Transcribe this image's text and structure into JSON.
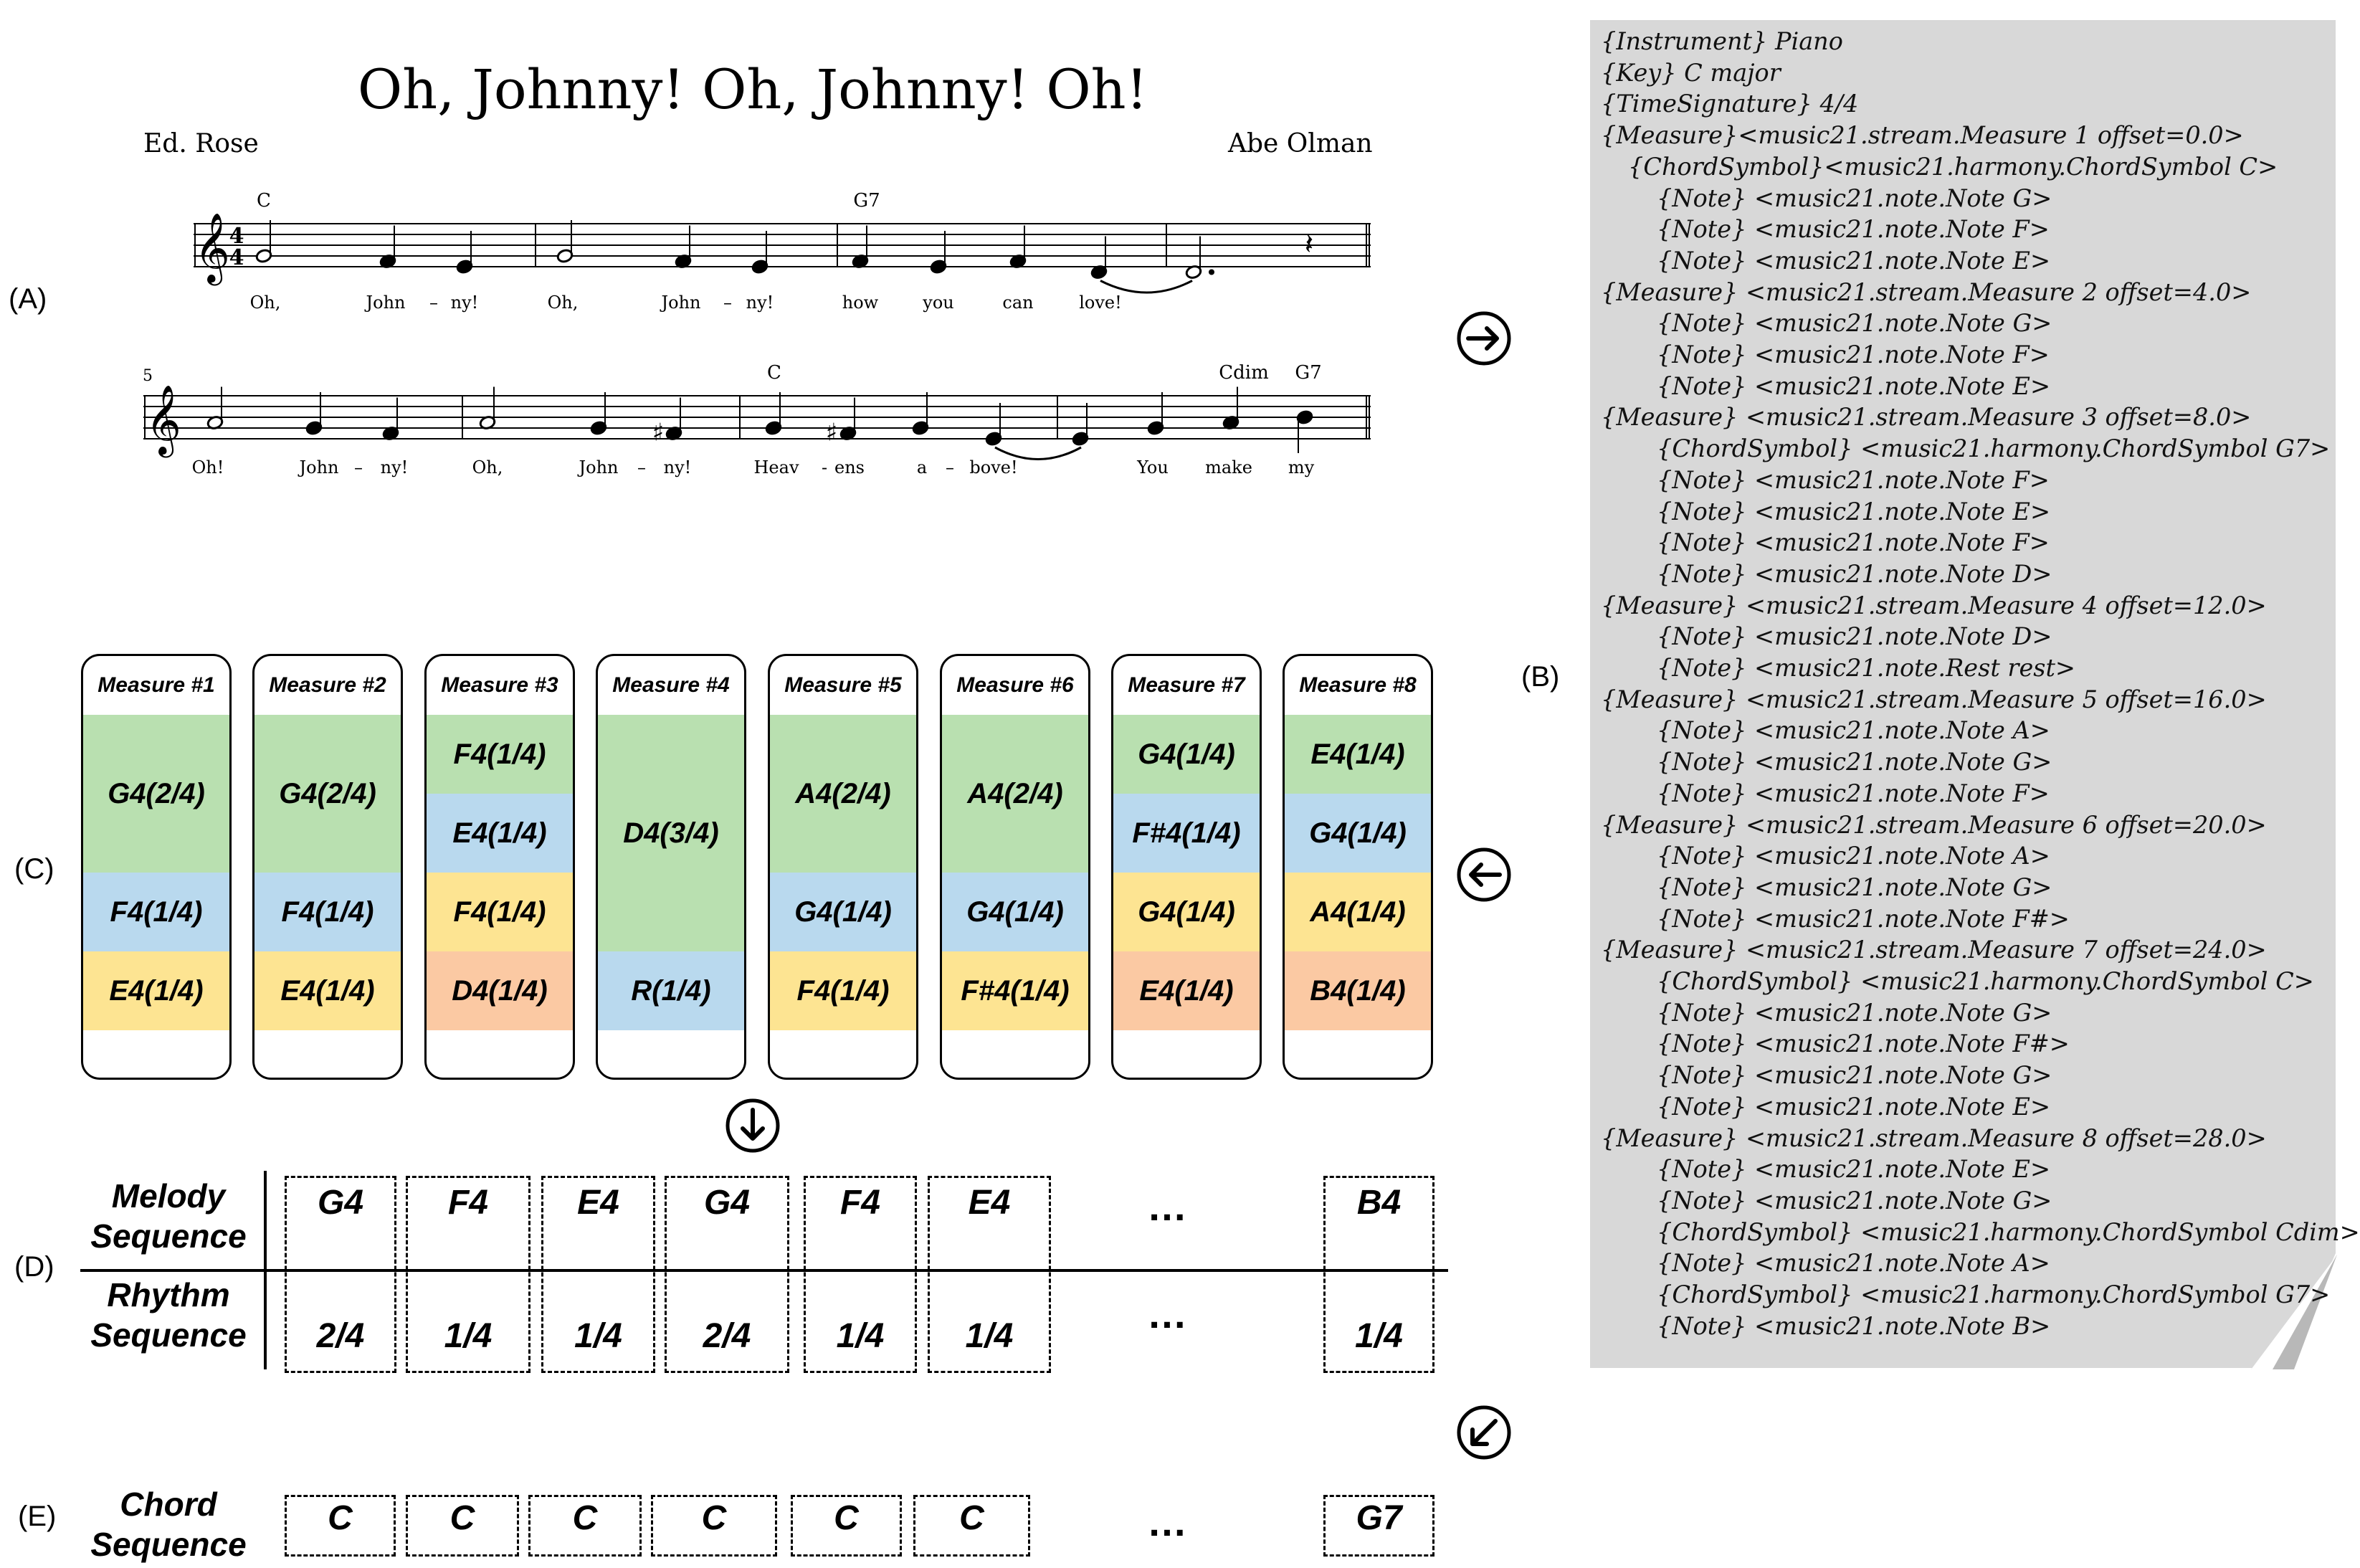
{
  "panel_labels": {
    "a": "(A)",
    "b": "(B)",
    "c": "(C)",
    "d": "(D)",
    "e": "(E)"
  },
  "sheet": {
    "title": "Oh, Johnny! Oh, Johnny! Oh!",
    "lyricist": "Ed. Rose",
    "composer": "Abe Olman",
    "system1": {
      "chords": [
        "C",
        "G7"
      ],
      "lyrics": [
        "Oh,",
        "John",
        "–",
        "ny!",
        "Oh,",
        "John",
        "–",
        "ny!",
        "how",
        "you",
        "can",
        "love!"
      ]
    },
    "system2": {
      "measure_number": "5",
      "chords": [
        "C",
        "Cdim",
        "G7"
      ],
      "lyrics": [
        "Oh!",
        "John",
        "–",
        "ny!",
        "Oh,",
        "John",
        "–",
        "ny!",
        "Heav",
        "-",
        "ens",
        "a",
        "–",
        "bove!",
        "You",
        "make",
        "my"
      ]
    }
  },
  "code_lines": [
    "{Instrument} Piano",
    "{Key} C major",
    "{TimeSignature} 4/4",
    "{Measure}<music21.stream.Measure 1 offset=0.0>",
    "    {ChordSymbol}<music21.harmony.ChordSymbol C>",
    "        {Note} <music21.note.Note G>",
    "        {Note} <music21.note.Note F>",
    "        {Note} <music21.note.Note E>",
    "{Measure} <music21.stream.Measure 2 offset=4.0>",
    "        {Note} <music21.note.Note G>",
    "        {Note} <music21.note.Note F>",
    "        {Note} <music21.note.Note E>",
    "{Measure} <music21.stream.Measure 3 offset=8.0>",
    "        {ChordSymbol} <music21.harmony.ChordSymbol G7>",
    "        {Note} <music21.note.Note F>",
    "        {Note} <music21.note.Note E>",
    "        {Note} <music21.note.Note F>",
    "        {Note} <music21.note.Note D>",
    "{Measure} <music21.stream.Measure 4 offset=12.0>",
    "        {Note} <music21.note.Note D>",
    "        {Note} <music21.note.Rest rest>",
    "{Measure} <music21.stream.Measure 5 offset=16.0>",
    "        {Note} <music21.note.Note A>",
    "        {Note} <music21.note.Note G>",
    "        {Note} <music21.note.Note F>",
    "{Measure} <music21.stream.Measure 6 offset=20.0>",
    "        {Note} <music21.note.Note A>",
    "        {Note} <music21.note.Note G>",
    "        {Note} <music21.note.Note F#>",
    "{Measure} <music21.stream.Measure 7 offset=24.0>",
    "        {ChordSymbol} <music21.harmony.ChordSymbol C>",
    "        {Note} <music21.note.Note G>",
    "        {Note} <music21.note.Note F#>",
    "        {Note} <music21.note.Note G>",
    "        {Note} <music21.note.Note E>",
    "{Measure} <music21.stream.Measure 8 offset=28.0>",
    "        {Note} <music21.note.Note E>",
    "        {Note} <music21.note.Note G>",
    "        {ChordSymbol} <music21.harmony.ChordSymbol Cdim>",
    "        {Note} <music21.note.Note A>",
    "        {ChordSymbol} <music21.harmony.ChordSymbol G7>",
    "        {Note} <music21.note.Note B>"
  ],
  "measures": [
    {
      "title": "Measure #1",
      "notes": [
        {
          "label": "G4(2/4)",
          "dur": 2,
          "color": "green"
        },
        {
          "label": "F4(1/4)",
          "dur": 1,
          "color": "blue"
        },
        {
          "label": "E4(1/4)",
          "dur": 1,
          "color": "yellow"
        }
      ]
    },
    {
      "title": "Measure #2",
      "notes": [
        {
          "label": "G4(2/4)",
          "dur": 2,
          "color": "green"
        },
        {
          "label": "F4(1/4)",
          "dur": 1,
          "color": "blue"
        },
        {
          "label": "E4(1/4)",
          "dur": 1,
          "color": "yellow"
        }
      ]
    },
    {
      "title": "Measure #3",
      "notes": [
        {
          "label": "F4(1/4)",
          "dur": 1,
          "color": "green"
        },
        {
          "label": "E4(1/4)",
          "dur": 1,
          "color": "blue"
        },
        {
          "label": "F4(1/4)",
          "dur": 1,
          "color": "yellow"
        },
        {
          "label": "D4(1/4)",
          "dur": 1,
          "color": "orange"
        }
      ]
    },
    {
      "title": "Measure #4",
      "notes": [
        {
          "label": "D4(3/4)",
          "dur": 3,
          "color": "green"
        },
        {
          "label": "R(1/4)",
          "dur": 1,
          "color": "blue"
        }
      ]
    },
    {
      "title": "Measure #5",
      "notes": [
        {
          "label": "A4(2/4)",
          "dur": 2,
          "color": "green"
        },
        {
          "label": "G4(1/4)",
          "dur": 1,
          "color": "blue"
        },
        {
          "label": "F4(1/4)",
          "dur": 1,
          "color": "yellow"
        }
      ]
    },
    {
      "title": "Measure #6",
      "notes": [
        {
          "label": "A4(2/4)",
          "dur": 2,
          "color": "green"
        },
        {
          "label": "G4(1/4)",
          "dur": 1,
          "color": "blue"
        },
        {
          "label": "F#4(1/4)",
          "dur": 1,
          "color": "yellow"
        }
      ]
    },
    {
      "title": "Measure #7",
      "notes": [
        {
          "label": "G4(1/4)",
          "dur": 1,
          "color": "green"
        },
        {
          "label": "F#4(1/4)",
          "dur": 1,
          "color": "blue"
        },
        {
          "label": "G4(1/4)",
          "dur": 1,
          "color": "yellow"
        },
        {
          "label": "E4(1/4)",
          "dur": 1,
          "color": "orange"
        }
      ]
    },
    {
      "title": "Measure #8",
      "notes": [
        {
          "label": "E4(1/4)",
          "dur": 1,
          "color": "green"
        },
        {
          "label": "G4(1/4)",
          "dur": 1,
          "color": "blue"
        },
        {
          "label": "A4(1/4)",
          "dur": 1,
          "color": "yellow"
        },
        {
          "label": "B4(1/4)",
          "dur": 1,
          "color": "orange"
        }
      ]
    }
  ],
  "colors": {
    "green": "#b9e0b0",
    "blue": "#b9d9ee",
    "yellow": "#fde492",
    "orange": "#fbc9a3",
    "code_bg": "#d8d8d8"
  },
  "melody_header": "Melody\nSequence",
  "rhythm_header": "Rhythm\nSequence",
  "chord_header": "Chord\nSequence",
  "melody_sequence": [
    "G4",
    "F4",
    "E4",
    "G4",
    "F4",
    "E4"
  ],
  "melody_last": "B4",
  "rhythm_sequence": [
    "2/4",
    "1/4",
    "1/4",
    "2/4",
    "1/4",
    "1/4"
  ],
  "rhythm_last": "1/4",
  "chord_sequence": [
    "C",
    "C",
    "C",
    "C",
    "C",
    "C"
  ],
  "chord_last": "G7",
  "ellipsis": "…",
  "arrow_icons": [
    "arrow-right-icon",
    "arrow-left-icon",
    "arrow-down-icon",
    "arrow-down-left-icon"
  ]
}
